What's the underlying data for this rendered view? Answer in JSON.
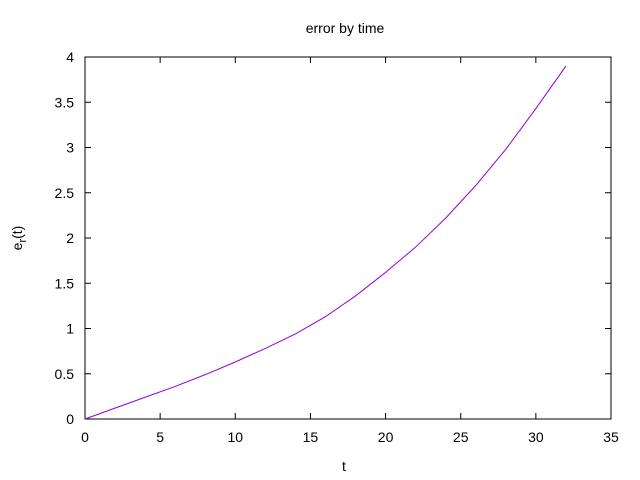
{
  "chart_data": {
    "type": "line",
    "title": "error by time",
    "xlabel": "t",
    "ylabel": {
      "base": "e",
      "subscript": "r",
      "suffix": "(t)"
    },
    "xlim": [
      0,
      35
    ],
    "ylim": [
      0,
      4
    ],
    "xticks": [
      "0",
      "5",
      "10",
      "15",
      "20",
      "25",
      "30",
      "35"
    ],
    "yticks": [
      "0",
      "0.5",
      "1",
      "1.5",
      "2",
      "2.5",
      "3",
      "3.5",
      "4"
    ],
    "grid": false,
    "legend": "none",
    "series": [
      {
        "color": "#9400d3",
        "x": [
          0,
          2,
          4,
          6,
          8,
          10,
          12,
          14,
          16,
          18,
          20,
          22,
          24,
          26,
          28,
          30,
          32
        ],
        "y": [
          0,
          0.12,
          0.24,
          0.36,
          0.49,
          0.63,
          0.78,
          0.94,
          1.13,
          1.36,
          1.62,
          1.9,
          2.22,
          2.58,
          2.98,
          3.43,
          3.9
        ]
      }
    ]
  }
}
